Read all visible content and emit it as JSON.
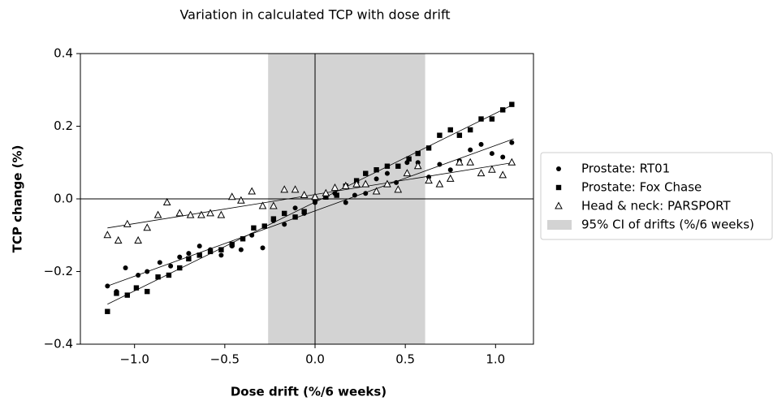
{
  "chart_data": {
    "type": "scatter",
    "title": "Variation in calculated TCP with dose drift",
    "x_label": "Dose drift (%/6 weeks)",
    "y_label": "TCP change (%)",
    "xlim": [
      -1.3,
      1.21
    ],
    "ylim": [
      -0.4,
      0.4
    ],
    "xticks": [
      {
        "value": -1.0,
        "label": "−1.0"
      },
      {
        "value": -0.5,
        "label": "−0.5"
      },
      {
        "value": 0,
        "label": "0.0"
      },
      0.5,
      {
        "value": 1.0,
        "label": "1.0"
      }
    ],
    "yticks": [
      {
        "value": -0.4,
        "label": "−0.4"
      },
      {
        "value": -0.2,
        "label": "−0.2"
      },
      {
        "value": 0,
        "label": "0.0"
      },
      0.2,
      0.4
    ],
    "legend": "right",
    "ci": {
      "label": "95% CI of drifts (%/6 weeks)",
      "range": [
        -0.26,
        0.61
      ],
      "color": "#d3d3d3"
    },
    "series": [
      {
        "name": "Prostate: RT01",
        "marker": "circle",
        "color": "#000000",
        "x": [
          -1.15,
          -1.1,
          -1.05,
          -0.98,
          -0.93,
          -0.86,
          -0.8,
          -0.75,
          -0.7,
          -0.64,
          -0.58,
          -0.52,
          -0.46,
          -0.41,
          -0.35,
          -0.29,
          -0.23,
          -0.17,
          -0.11,
          -0.06,
          0.0,
          0.06,
          0.11,
          0.17,
          0.22,
          0.28,
          0.34,
          0.4,
          0.45,
          0.51,
          0.57,
          0.63,
          0.69,
          0.75,
          0.8,
          0.86,
          0.92,
          0.98,
          1.04,
          1.09
        ],
        "values": [
          -0.24,
          -0.255,
          -0.19,
          -0.21,
          -0.2,
          -0.175,
          -0.185,
          -0.16,
          -0.15,
          -0.13,
          -0.14,
          -0.155,
          -0.13,
          -0.14,
          -0.1,
          -0.135,
          -0.06,
          -0.07,
          -0.025,
          -0.04,
          -0.01,
          0.005,
          0.015,
          -0.01,
          0.01,
          0.015,
          0.055,
          0.07,
          0.045,
          0.1,
          0.1,
          0.06,
          0.095,
          0.08,
          0.105,
          0.135,
          0.15,
          0.125,
          0.115,
          0.155
        ],
        "trend": {
          "x": [
            -1.15,
            1.1
          ],
          "values": [
            -0.24,
            0.165
          ]
        }
      },
      {
        "name": "Prostate: Fox Chase",
        "marker": "square",
        "color": "#000000",
        "x": [
          -1.15,
          -1.1,
          -1.04,
          -0.99,
          -0.93,
          -0.87,
          -0.81,
          -0.75,
          -0.7,
          -0.64,
          -0.58,
          -0.52,
          -0.46,
          -0.4,
          -0.34,
          -0.28,
          -0.23,
          -0.17,
          -0.11,
          -0.06,
          0.0,
          0.06,
          0.12,
          0.17,
          0.23,
          0.28,
          0.34,
          0.4,
          0.46,
          0.52,
          0.57,
          0.63,
          0.69,
          0.75,
          0.8,
          0.86,
          0.92,
          0.98,
          1.04,
          1.09
        ],
        "values": [
          -0.31,
          -0.26,
          -0.265,
          -0.245,
          -0.255,
          -0.215,
          -0.21,
          -0.19,
          -0.165,
          -0.155,
          -0.145,
          -0.14,
          -0.125,
          -0.11,
          -0.08,
          -0.075,
          -0.055,
          -0.04,
          -0.05,
          -0.035,
          0.0,
          0.005,
          0.01,
          0.035,
          0.05,
          0.07,
          0.08,
          0.09,
          0.09,
          0.11,
          0.125,
          0.14,
          0.175,
          0.19,
          0.175,
          0.19,
          0.22,
          0.22,
          0.245,
          0.26
        ],
        "trend": {
          "x": [
            -1.15,
            1.1
          ],
          "values": [
            -0.29,
            0.26
          ]
        }
      },
      {
        "name": "Head & neck: PARSPORT",
        "marker": "triangle",
        "color": "#000000",
        "x": [
          -1.15,
          -1.09,
          -1.04,
          -0.98,
          -0.93,
          -0.87,
          -0.82,
          -0.75,
          -0.69,
          -0.63,
          -0.58,
          -0.52,
          -0.46,
          -0.41,
          -0.35,
          -0.29,
          -0.23,
          -0.17,
          -0.11,
          -0.06,
          0.0,
          0.06,
          0.11,
          0.17,
          0.23,
          0.28,
          0.34,
          0.4,
          0.46,
          0.51,
          0.57,
          0.63,
          0.69,
          0.75,
          0.8,
          0.86,
          0.92,
          0.98,
          1.04,
          1.09
        ],
        "values": [
          -0.1,
          -0.115,
          -0.07,
          -0.115,
          -0.08,
          -0.045,
          -0.01,
          -0.04,
          -0.045,
          -0.045,
          -0.04,
          -0.045,
          0.005,
          -0.005,
          0.02,
          -0.02,
          -0.02,
          0.025,
          0.025,
          0.01,
          0.005,
          0.015,
          0.03,
          0.035,
          0.04,
          0.04,
          0.02,
          0.04,
          0.025,
          0.07,
          0.09,
          0.05,
          0.04,
          0.055,
          0.1,
          0.1,
          0.07,
          0.08,
          0.065,
          0.1
        ],
        "trend": {
          "x": [
            -1.15,
            1.1
          ],
          "values": [
            -0.08,
            0.1
          ]
        }
      }
    ]
  }
}
